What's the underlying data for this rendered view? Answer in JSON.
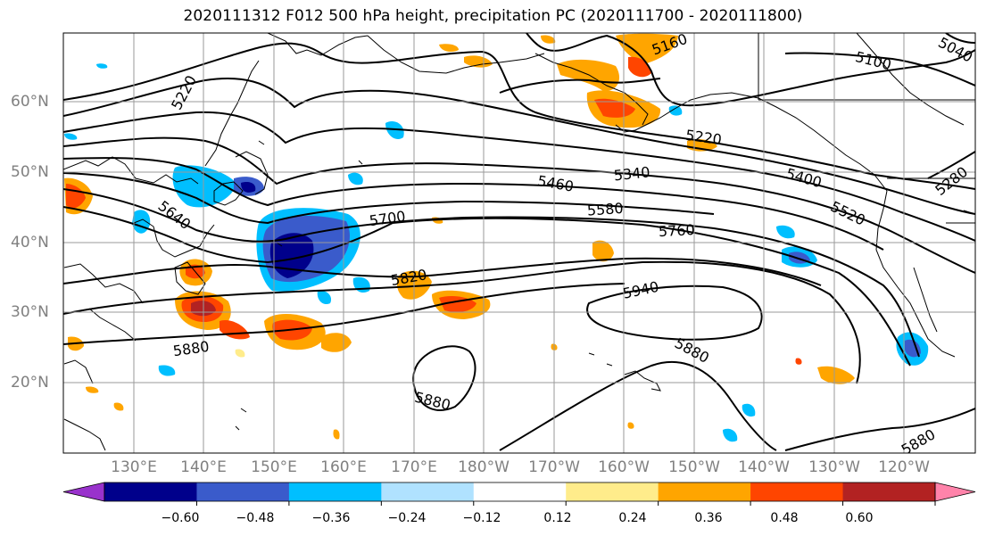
{
  "title": "2020111312 F012 500 hPa height, precipitation PC (2020111700 - 2020111800)",
  "lat_labels": [
    "60°N",
    "50°N",
    "40°N",
    "30°N",
    "20°N"
  ],
  "lon_labels": [
    "130°E",
    "140°E",
    "150°E",
    "160°E",
    "170°E",
    "180°W",
    "170°W",
    "160°W",
    "150°W",
    "140°W",
    "130°W",
    "120°W"
  ],
  "contour_labels": [
    "5220",
    "5160",
    "5100",
    "5040",
    "5640",
    "5700",
    "5460",
    "5340",
    "5580",
    "5220",
    "5400",
    "5520",
    "5280",
    "5760",
    "5820",
    "5940",
    "5880",
    "5880",
    "5880",
    "5880"
  ],
  "colorbar": {
    "ticks": [
      "−0.60",
      "−0.48",
      "−0.36",
      "−0.24",
      "−0.12",
      "0.12",
      "0.24",
      "0.36",
      "0.48",
      "0.60"
    ],
    "colors": [
      "#9932CC",
      "#00008B",
      "#3A5BCB",
      "#00BFFF",
      "#B0E2FF",
      "#FFFFFF",
      "#FFEC8B",
      "#FFA500",
      "#FF4500",
      "#B22222",
      "#FF83AA"
    ]
  }
}
